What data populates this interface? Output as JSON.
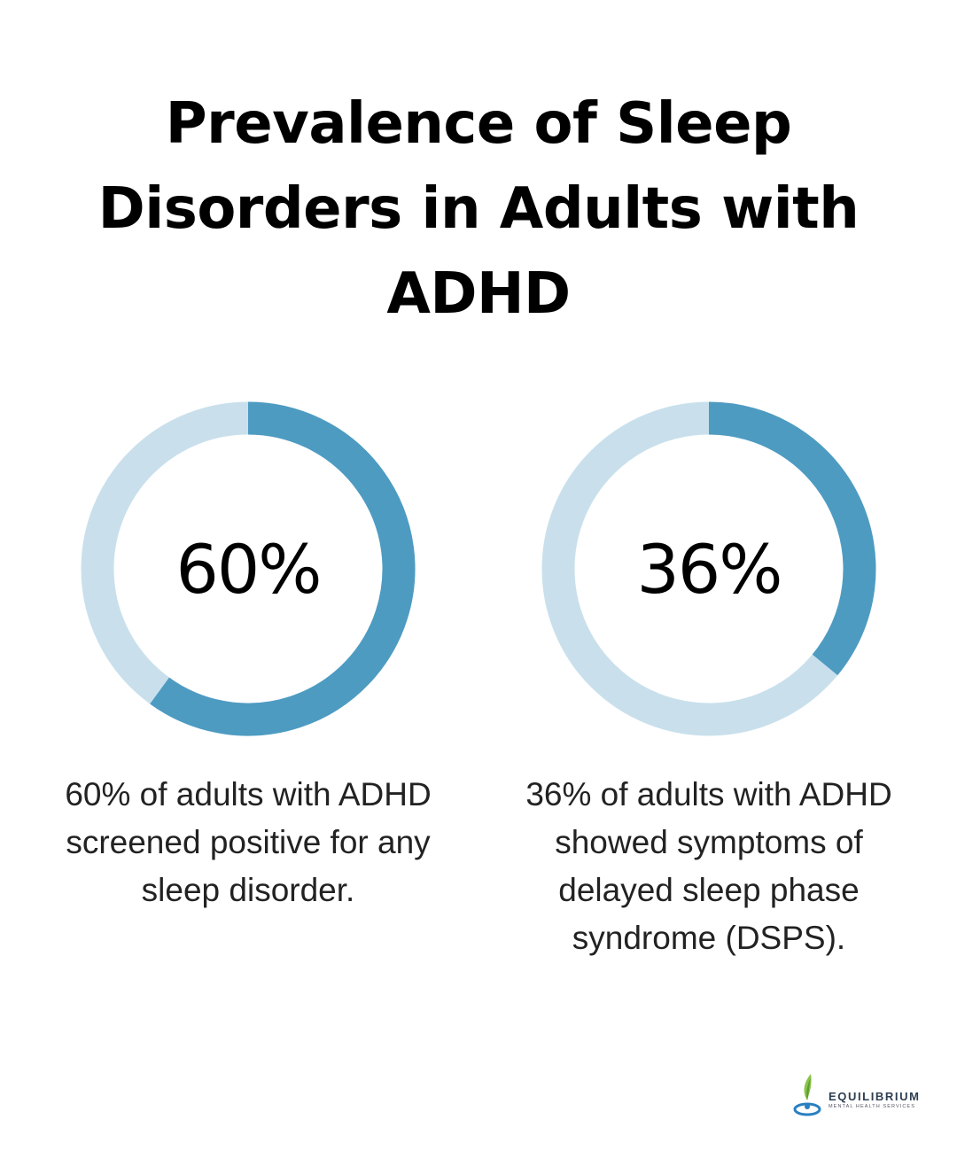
{
  "title_lines": [
    "Prevalence of Sleep",
    "Disorders in Adults with",
    "ADHD"
  ],
  "colors": {
    "filled": "#4e9bc2",
    "track": "#c9e0ec"
  },
  "chart_data": [
    {
      "type": "pie",
      "value": 60,
      "value_label": "60%",
      "caption_lines": [
        "60% of adults with ADHD",
        "screened positive for any",
        "sleep disorder."
      ]
    },
    {
      "type": "pie",
      "value": 36,
      "value_label": "36%",
      "caption_lines": [
        "36% of adults with ADHD",
        "showed symptoms of",
        "delayed sleep phase",
        "syndrome (DSPS)."
      ]
    }
  ],
  "logo": {
    "name": "EQUILIBRIUM",
    "tagline": "MENTAL HEALTH SERVICES",
    "icon": "leaf-drop-icon"
  }
}
